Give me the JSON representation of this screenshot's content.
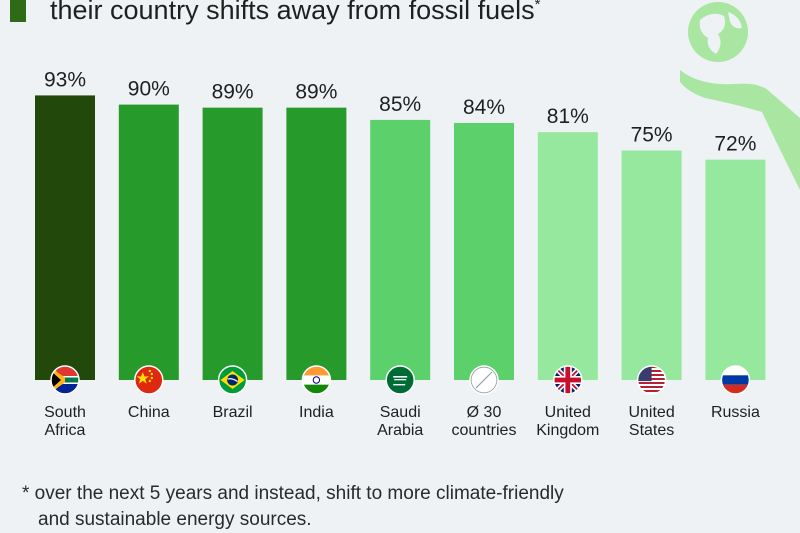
{
  "subtitle": {
    "text": "their country shifts away from fossil fuels",
    "marker": "*"
  },
  "colors": {
    "dark": "#22480b",
    "medium": "#279a2c",
    "light": "#5bd06b",
    "lighter": "#96e89e",
    "title_marker": "#2f6b16",
    "background": "#eef2f5"
  },
  "icons": [
    "globe-in-hand-icon"
  ],
  "chart_data": {
    "type": "bar",
    "categories": [
      [
        "South",
        "Africa"
      ],
      [
        "China"
      ],
      [
        "Brazil"
      ],
      [
        "India"
      ],
      [
        "Saudi",
        "Arabia"
      ],
      [
        "Ø 30",
        "countries"
      ],
      [
        "United",
        "Kingdom"
      ],
      [
        "United",
        "States"
      ],
      [
        "Russia"
      ]
    ],
    "values": [
      93,
      90,
      89,
      89,
      85,
      84,
      81,
      75,
      72
    ],
    "value_labels": [
      "93%",
      "90%",
      "89%",
      "89%",
      "85%",
      "84%",
      "81%",
      "75%",
      "72%"
    ],
    "flags": [
      "flag-south-africa-icon",
      "flag-china-icon",
      "flag-brazil-icon",
      "flag-india-icon",
      "flag-saudi-arabia-icon",
      "average-icon",
      "flag-uk-icon",
      "flag-usa-icon",
      "flag-russia-icon"
    ],
    "bar_colors": [
      "#22480b",
      "#279a2c",
      "#279a2c",
      "#279a2c",
      "#5bd06b",
      "#5bd06b",
      "#96e89e",
      "#96e89e",
      "#96e89e"
    ],
    "unit": "%",
    "ylim": [
      0,
      100
    ],
    "grid": false,
    "title": "",
    "xlabel": "",
    "ylabel": ""
  },
  "footnote": {
    "line1": "* over the next 5 years and instead, shift to more climate-friendly",
    "line2": "and sustainable energy sources."
  }
}
